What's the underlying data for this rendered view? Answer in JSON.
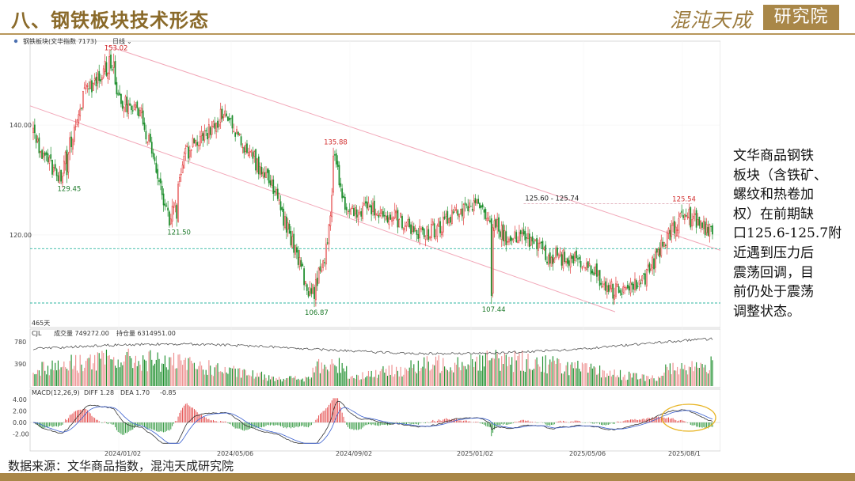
{
  "header": {
    "title": "八、钢铁板块技术形态",
    "logo_text": "混沌天成",
    "logo_box": "研究院"
  },
  "chart_info": {
    "name": "钢铁板块(文华指数 7173)",
    "period": "日线",
    "days": "465天",
    "vol_label": "CJL",
    "vol_text": "成交量 749272.00",
    "oi_text": "持仓量 6314951.00",
    "macd_label": "MACD(12,26,9)",
    "diff_text": "DIFF 1.28",
    "dea_text": "DEA 1.70",
    "macd_val_text": "-0.85"
  },
  "colors": {
    "up": "#e23b3b",
    "down": "#1f8f2e",
    "resistance": "#f2a7b8",
    "support": "#2db5a0",
    "highlight": "#e8b422",
    "brand": "#a98748"
  },
  "chart_data": {
    "type": "candlestick",
    "ylim": [
      104,
      155
    ],
    "yticks": [
      120.0,
      140.0
    ],
    "x_ticks": [
      "2024/01/02",
      "2024/05/06",
      "2024/09/02",
      "2025/01/02",
      "2025/05/06",
      "2025/08/1"
    ],
    "anchors": [
      {
        "i": 0,
        "v": 138
      },
      {
        "i": 18,
        "v": 130
      },
      {
        "i": 35,
        "v": 146
      },
      {
        "i": 52,
        "v": 151
      },
      {
        "i": 60,
        "v": 144
      },
      {
        "i": 73,
        "v": 143
      },
      {
        "i": 93,
        "v": 123
      },
      {
        "i": 104,
        "v": 135
      },
      {
        "i": 118,
        "v": 138
      },
      {
        "i": 130,
        "v": 142
      },
      {
        "i": 148,
        "v": 135
      },
      {
        "i": 165,
        "v": 128
      },
      {
        "i": 180,
        "v": 116
      },
      {
        "i": 190,
        "v": 109
      },
      {
        "i": 200,
        "v": 117
      },
      {
        "i": 206,
        "v": 133
      },
      {
        "i": 214,
        "v": 125
      },
      {
        "i": 240,
        "v": 124
      },
      {
        "i": 268,
        "v": 120
      },
      {
        "i": 290,
        "v": 124
      },
      {
        "i": 306,
        "v": 125
      },
      {
        "i": 325,
        "v": 119
      },
      {
        "i": 340,
        "v": 119
      },
      {
        "i": 352,
        "v": 116
      },
      {
        "i": 368,
        "v": 116
      },
      {
        "i": 380,
        "v": 114
      },
      {
        "i": 395,
        "v": 110
      },
      {
        "i": 414,
        "v": 111
      },
      {
        "i": 424,
        "v": 115
      },
      {
        "i": 434,
        "v": 120
      },
      {
        "i": 444,
        "v": 124
      },
      {
        "i": 454,
        "v": 122
      },
      {
        "i": 464,
        "v": 121
      }
    ],
    "extremes": [
      {
        "i": 23,
        "v": 129.45,
        "label": "129.45",
        "kind": "low"
      },
      {
        "i": 55,
        "v": 153.02,
        "label": "153.02",
        "kind": "high"
      },
      {
        "i": 98,
        "v": 121.5,
        "label": "121.50",
        "kind": "low"
      },
      {
        "i": 192,
        "v": 106.87,
        "label": "106.87",
        "kind": "low"
      },
      {
        "i": 205,
        "v": 135.88,
        "label": "135.88",
        "kind": "high"
      },
      {
        "i": 313,
        "v": 107.44,
        "label": "107.44",
        "kind": "low"
      },
      {
        "i": 443,
        "v": 125.54,
        "label": "125.54",
        "kind": "high"
      }
    ],
    "resistance_label": "125.60 - 125.74",
    "resistance_value": 125.7,
    "support_lines": [
      117.5,
      107.6
    ],
    "volume_ticks": [
      "780",
      "390"
    ],
    "macd_ticks": [
      "4.00",
      "2.00",
      "0.00",
      "-2.00"
    ],
    "n_bars": 465
  },
  "side_text": {
    "lines": [
      "文华商品钢铁",
      "板块（含铁矿、",
      "螺纹和热卷加",
      "权）在前期缺",
      "口125.6-125.7附",
      "近遇到压力后",
      "震荡回调，目",
      "前仍处于震荡",
      "调整状态。"
    ]
  },
  "footer": {
    "source": "数据来源：文华商品指数，混沌天成研究院"
  }
}
